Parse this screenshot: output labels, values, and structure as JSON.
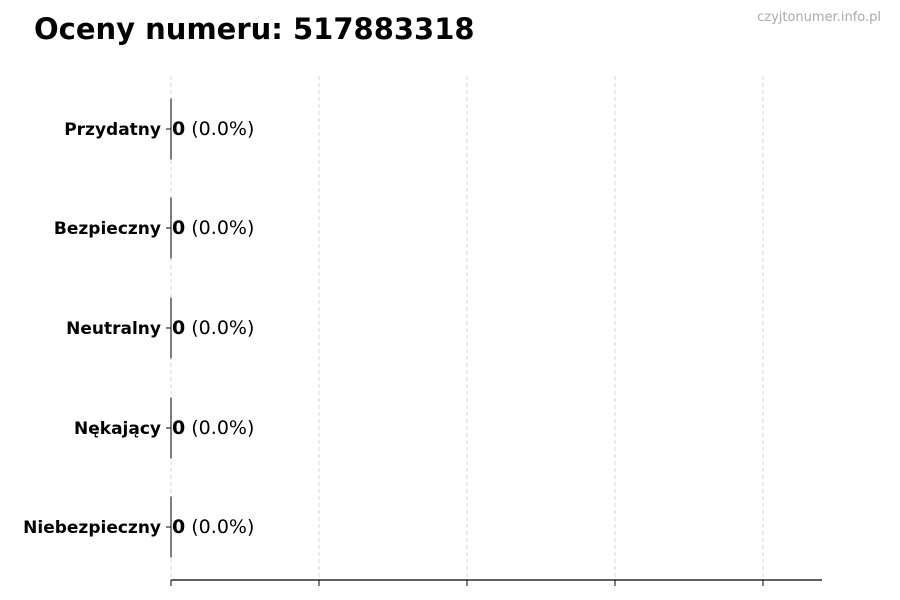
{
  "title": "Oceny numeru: 517883318",
  "watermark": "czyjtonumer.info.pl",
  "chart_data": {
    "type": "bar",
    "orientation": "horizontal",
    "title": "Oceny numeru: 517883318",
    "categories": [
      "Przydatny",
      "Bezpieczny",
      "Neutralny",
      "Nękający",
      "Niebezpieczny"
    ],
    "values": [
      0,
      0,
      0,
      0,
      0
    ],
    "data_labels": [
      {
        "count": "0",
        "percent": "(0.0%)"
      },
      {
        "count": "0",
        "percent": "(0.0%)"
      },
      {
        "count": "0",
        "percent": "(0.0%)"
      },
      {
        "count": "0",
        "percent": "(0.0%)"
      },
      {
        "count": "0",
        "percent": "(0.0%)"
      }
    ],
    "xlabel": "",
    "ylabel": "",
    "x_tick_labels_shown": false,
    "grid": "vertical dashed",
    "colors": {
      "bar_edge": "#000000",
      "grid": "#cccccc",
      "axis": "#000000"
    }
  }
}
